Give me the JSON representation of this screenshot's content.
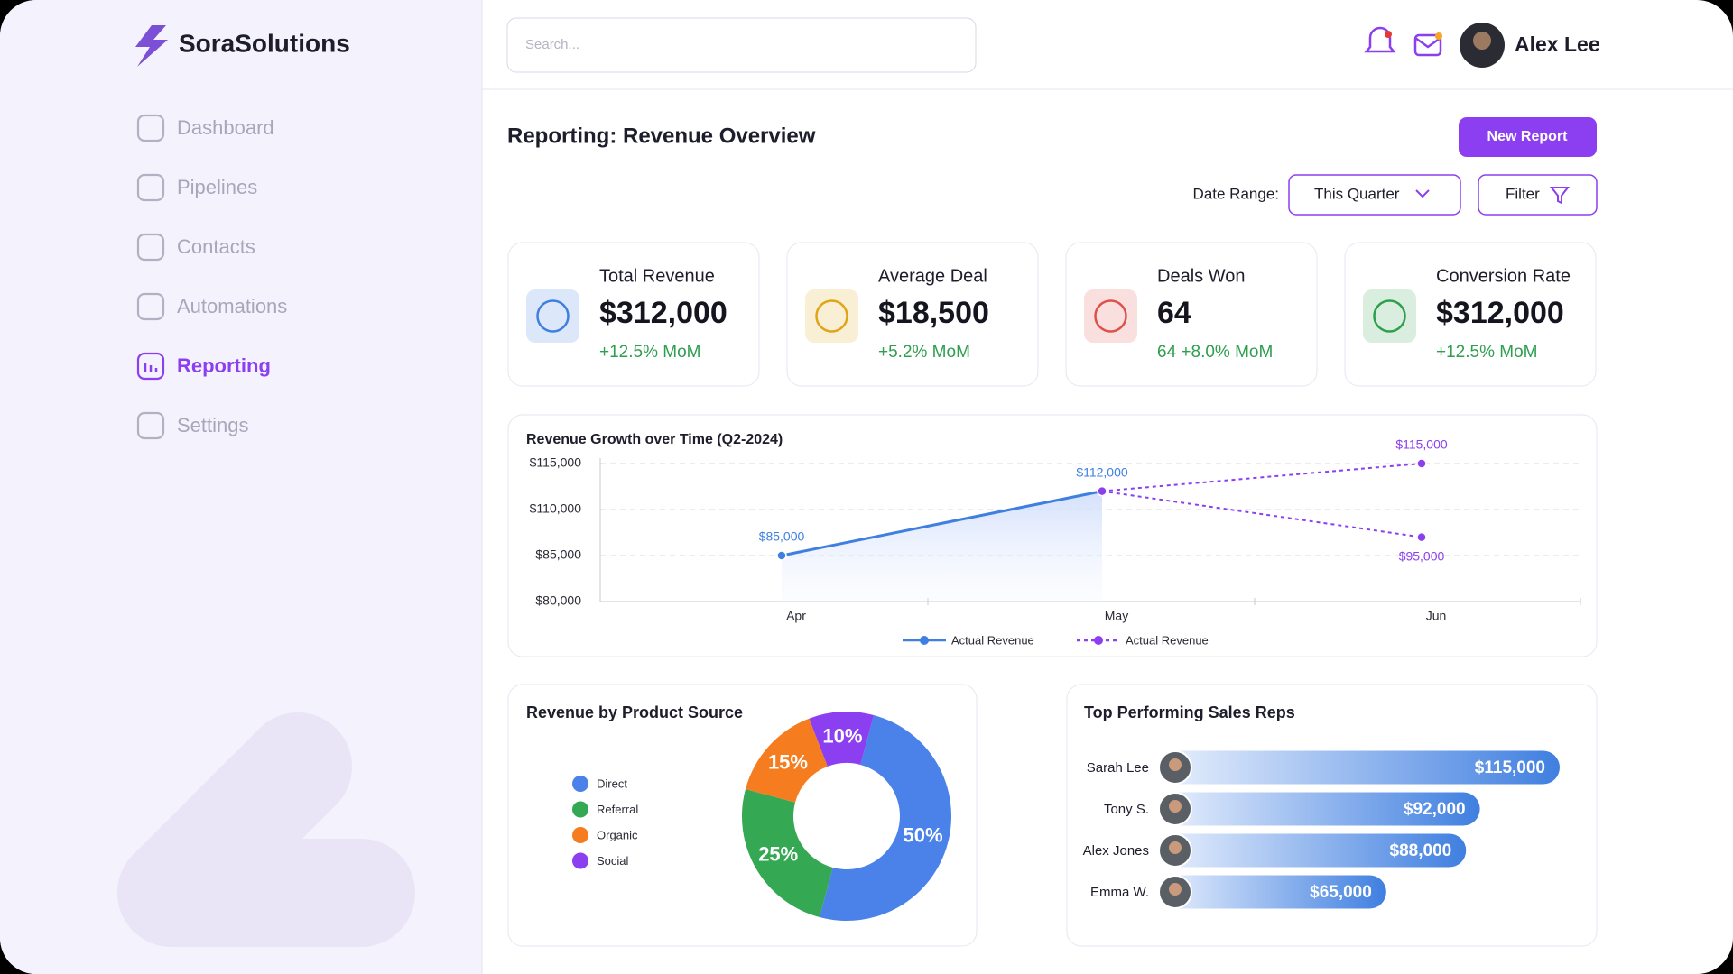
{
  "sidebar": {
    "brand": "SoraSolutions",
    "nav": [
      "Dashboard",
      "Pipelines",
      "Contacts",
      "Automations",
      "Reporting",
      "Settings"
    ],
    "active": 4
  },
  "header": {
    "search_placeholder": "Search...",
    "user": "Alex Lee"
  },
  "page": {
    "title": "Reporting: Revenue Overview",
    "new_report": "New Report",
    "date_range_label": "Date Range:",
    "date_range": "This Quarter",
    "filter": "Filter"
  },
  "kpis": [
    {
      "label": "Total Revenue",
      "value": "$312,000",
      "change": "+12.5% MoM",
      "color": "#3f7fe0"
    },
    {
      "label": "Average Deal",
      "value": "$18,500",
      "change": "+5.2% MoM",
      "color": "#e0a416"
    },
    {
      "label": "Deals Won",
      "value": "64",
      "change": "64 +8.0% MoM",
      "color": "#e0504a"
    },
    {
      "label": "Conversion Rate",
      "value": "$312,000",
      "change": "+12.5% MoM",
      "color": "#2e9e4f"
    }
  ],
  "charts": [
    {
      "type": "line",
      "title": "Revenue Growth over Time (Q2-2024)",
      "categories": [
        "Apr",
        "May",
        "Jun"
      ],
      "series": [
        {
          "name": "Actual Revenue",
          "color": "#3f7fe0",
          "dashed": false,
          "values": [
            85000,
            112000,
            null
          ],
          "value_labels": [
            "$85,000",
            "$112,000",
            null
          ]
        },
        {
          "name": "Actual Revenue",
          "color": "#8b3ff0",
          "dashed": true,
          "values": [
            null,
            112000,
            115000
          ],
          "value_labels": [
            null,
            null,
            "$115,000"
          ]
        },
        {
          "color": "#8b3ff0",
          "dashed": true,
          "values": [
            null,
            112000,
            95000
          ],
          "value_labels": [
            null,
            null,
            "$95,000"
          ]
        }
      ],
      "ylim": [
        80000,
        115000
      ],
      "yticks": [
        {
          "value": 80000,
          "label": "$80,000"
        },
        {
          "value": 85000,
          "label": "$85,000"
        },
        {
          "value": 110000,
          "label": "$110,000"
        },
        {
          "value": 115000,
          "label": "$115,000"
        }
      ],
      "grid": true
    },
    {
      "type": "donut",
      "title": "Revenue by Product Source",
      "categories": [
        "Direct",
        "Referral",
        "Organic",
        "Social"
      ],
      "values": [
        50,
        25,
        15,
        10
      ],
      "value_labels": [
        "50%",
        "25%",
        "15%",
        "10%"
      ],
      "colors": [
        "#4a82ea",
        "#34a853",
        "#f57c1f",
        "#8b3ff0"
      ]
    },
    {
      "type": "hbar",
      "title": "Top Performing Sales Reps",
      "categories": [
        "Sarah Lee",
        "Tony S.",
        "Alex Jones",
        "Emma W."
      ],
      "values": [
        115000,
        92000,
        88000,
        65000
      ],
      "value_labels": [
        "$115,000",
        "$92,000",
        "$88,000",
        "$65,000"
      ],
      "color": "#3f7fe0"
    }
  ]
}
